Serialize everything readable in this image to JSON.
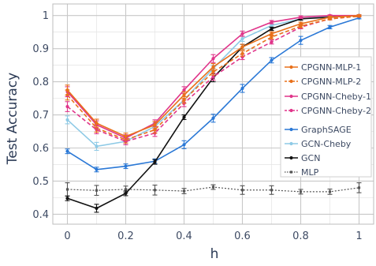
{
  "chart_data": {
    "type": "line",
    "xlabel": "h",
    "ylabel": "Test Accuracy",
    "xlim": [
      -0.05,
      1.05
    ],
    "ylim": [
      0.37,
      1.035
    ],
    "x_ticks": [
      "0",
      "0.2",
      "0.4",
      "0.6",
      "0.8",
      "1"
    ],
    "y_ticks": [
      "0.4",
      "0.5",
      "0.6",
      "0.7",
      "0.8",
      "0.9",
      "1"
    ],
    "x_tick_values": [
      0,
      0.2,
      0.4,
      0.6,
      0.8,
      1.0
    ],
    "y_tick_values": [
      0.4,
      0.5,
      0.6,
      0.7,
      0.8,
      0.9,
      1.0
    ],
    "grid": true,
    "legend_position": "right",
    "x": [
      0,
      0.1,
      0.2,
      0.3,
      0.4,
      0.5,
      0.6,
      0.7,
      0.8,
      0.9,
      1.0
    ],
    "series": [
      {
        "name": "CPGNN-MLP-1",
        "color": "#e8701a",
        "dash": "solid",
        "marker": "circle",
        "values": [
          0.775,
          0.675,
          0.635,
          0.67,
          0.76,
          0.845,
          0.905,
          0.945,
          0.975,
          0.995,
          1.0
        ],
        "errors": [
          0.015,
          0.012,
          0.01,
          0.01,
          0.01,
          0.01,
          0.008,
          0.006,
          0.005,
          0.003,
          0.002
        ]
      },
      {
        "name": "CPGNN-MLP-2",
        "color": "#e8701a",
        "dash": "dashed",
        "marker": "circle",
        "values": [
          0.76,
          0.66,
          0.625,
          0.655,
          0.745,
          0.83,
          0.885,
          0.935,
          0.968,
          0.99,
          0.998
        ],
        "errors": [
          0.015,
          0.012,
          0.01,
          0.01,
          0.01,
          0.01,
          0.008,
          0.006,
          0.005,
          0.003,
          0.002
        ]
      },
      {
        "name": "CPGNN-Cheby-1",
        "color": "#e0358a",
        "dash": "solid",
        "marker": "circle",
        "values": [
          0.77,
          0.67,
          0.63,
          0.675,
          0.775,
          0.87,
          0.945,
          0.98,
          0.995,
          1.0,
          1.0
        ],
        "errors": [
          0.015,
          0.012,
          0.01,
          0.01,
          0.01,
          0.012,
          0.008,
          0.005,
          0.004,
          0.002,
          0.002
        ]
      },
      {
        "name": "CPGNN-Cheby-2",
        "color": "#e0358a",
        "dash": "dashed",
        "marker": "circle",
        "values": [
          0.725,
          0.655,
          0.62,
          0.645,
          0.735,
          0.815,
          0.875,
          0.92,
          0.965,
          0.99,
          0.998
        ],
        "errors": [
          0.015,
          0.012,
          0.01,
          0.01,
          0.01,
          0.01,
          0.008,
          0.006,
          0.005,
          0.003,
          0.002
        ]
      },
      {
        "name": "GraphSAGE",
        "color": "#2a78d6",
        "dash": "solid",
        "marker": "circle",
        "values": [
          0.59,
          0.535,
          0.545,
          0.56,
          0.61,
          0.69,
          0.78,
          0.865,
          0.925,
          0.965,
          0.993
        ],
        "errors": [
          0.007,
          0.007,
          0.007,
          0.007,
          0.012,
          0.012,
          0.012,
          0.008,
          0.012,
          0.005,
          0.003
        ]
      },
      {
        "name": "GCN-Cheby",
        "color": "#8ecae6",
        "dash": "solid",
        "marker": "circle",
        "values": [
          0.685,
          0.605,
          0.62,
          0.665,
          0.745,
          0.84,
          0.93,
          0.97,
          0.99,
          0.998,
          1.0
        ],
        "errors": [
          0.012,
          0.012,
          0.01,
          0.01,
          0.01,
          0.01,
          0.008,
          0.005,
          0.004,
          0.002,
          0.002
        ]
      },
      {
        "name": "GCN",
        "color": "#111111",
        "dash": "solid",
        "marker": "circle",
        "values": [
          0.448,
          0.418,
          0.463,
          0.558,
          0.693,
          0.812,
          0.905,
          0.96,
          0.99,
          0.995,
          1.0
        ],
        "errors": [
          0.007,
          0.012,
          0.007,
          0.007,
          0.007,
          0.012,
          0.008,
          0.005,
          0.004,
          0.002,
          0.002
        ]
      },
      {
        "name": "MLP",
        "color": "#555555",
        "dash": "dotted",
        "marker": "square",
        "values": [
          0.475,
          0.472,
          0.475,
          0.473,
          0.47,
          0.482,
          0.473,
          0.473,
          0.468,
          0.468,
          0.48
        ],
        "errors": [
          0.02,
          0.015,
          0.01,
          0.015,
          0.008,
          0.007,
          0.013,
          0.013,
          0.007,
          0.008,
          0.015
        ]
      }
    ]
  }
}
